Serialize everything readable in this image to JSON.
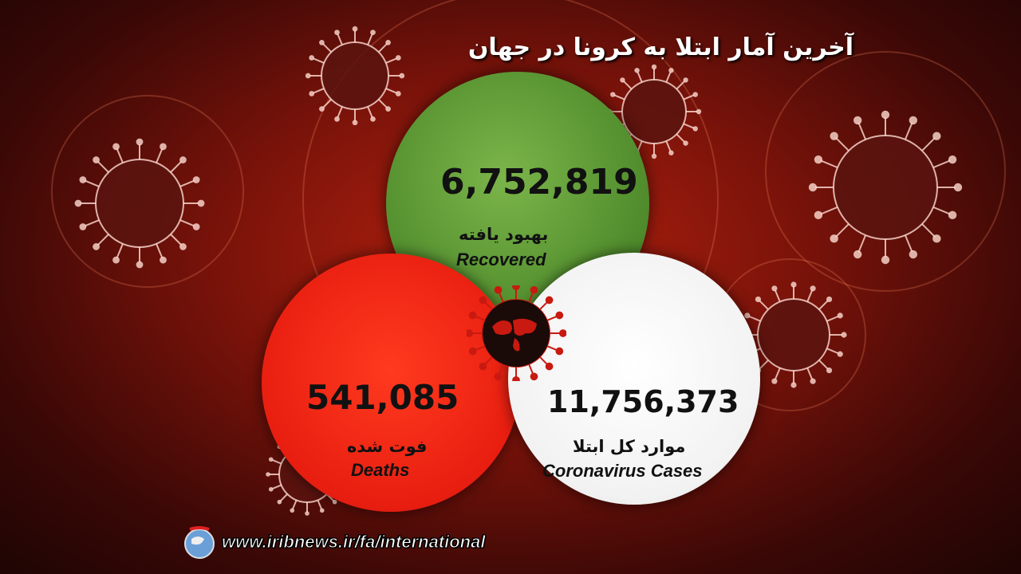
{
  "title": "آخرین آمار ابتلا به کرونا در جهان",
  "recovered": {
    "value": "6,752,819",
    "label_fa": "بهبود یافته",
    "label_en": "Recovered",
    "color": "#5a9a35"
  },
  "deaths": {
    "value": "541,085",
    "label_fa": "فوت شده",
    "label_en": "Deaths",
    "color": "#e81e10"
  },
  "cases": {
    "value": "11,756,373",
    "label_fa": "موارد کل ابتلا",
    "label_en": "Coronavirus Cases",
    "color": "#f5f5f5"
  },
  "footer": {
    "url": "www.iribnews.ir/fa/international",
    "logo_icon": "iribnews-globe-logo"
  },
  "center_icon": "virus-world-map-icon"
}
